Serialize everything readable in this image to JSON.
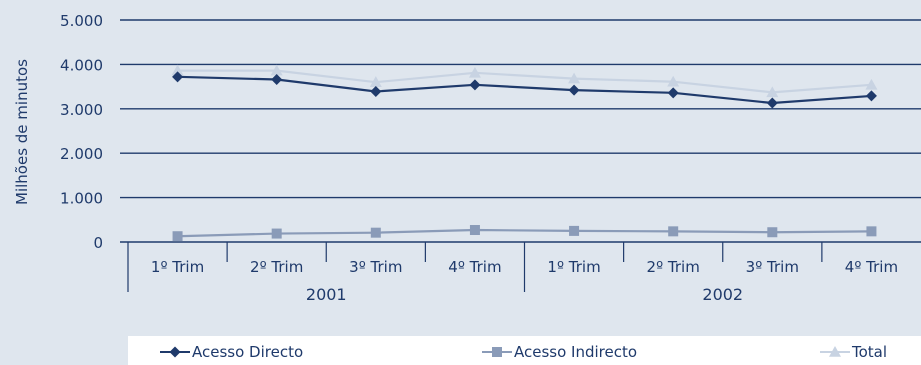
{
  "chart_data": {
    "type": "line",
    "ylabel": "Milhões de minutos",
    "y_ticks": [
      "5.000",
      "4.000",
      "3.000",
      "2.000",
      "1.000",
      "0"
    ],
    "ylim": [
      0,
      5000
    ],
    "categories": [
      "1º Trim",
      "2º Trim",
      "3º Trim",
      "4º Trim",
      "1º Trim",
      "2º Trim",
      "3º Trim",
      "4º Trim"
    ],
    "groups": [
      {
        "label": "2001",
        "span": [
          0,
          3
        ]
      },
      {
        "label": "2002",
        "span": [
          4,
          7
        ]
      }
    ],
    "grid": true,
    "legend_position": "bottom",
    "series": [
      {
        "name": "Acesso Directo",
        "values": [
          3720,
          3660,
          3390,
          3540,
          3420,
          3360,
          3130,
          3290
        ],
        "color": "#1f3a6b",
        "marker": "diamond"
      },
      {
        "name": "Acesso Indirecto",
        "values": [
          130,
          190,
          210,
          270,
          250,
          240,
          220,
          240
        ],
        "color": "#8a9bb8",
        "marker": "square"
      },
      {
        "name": "Total",
        "values": [
          3860,
          3860,
          3600,
          3810,
          3680,
          3610,
          3370,
          3540
        ],
        "color": "#c8d3e2",
        "marker": "triangle"
      }
    ]
  }
}
